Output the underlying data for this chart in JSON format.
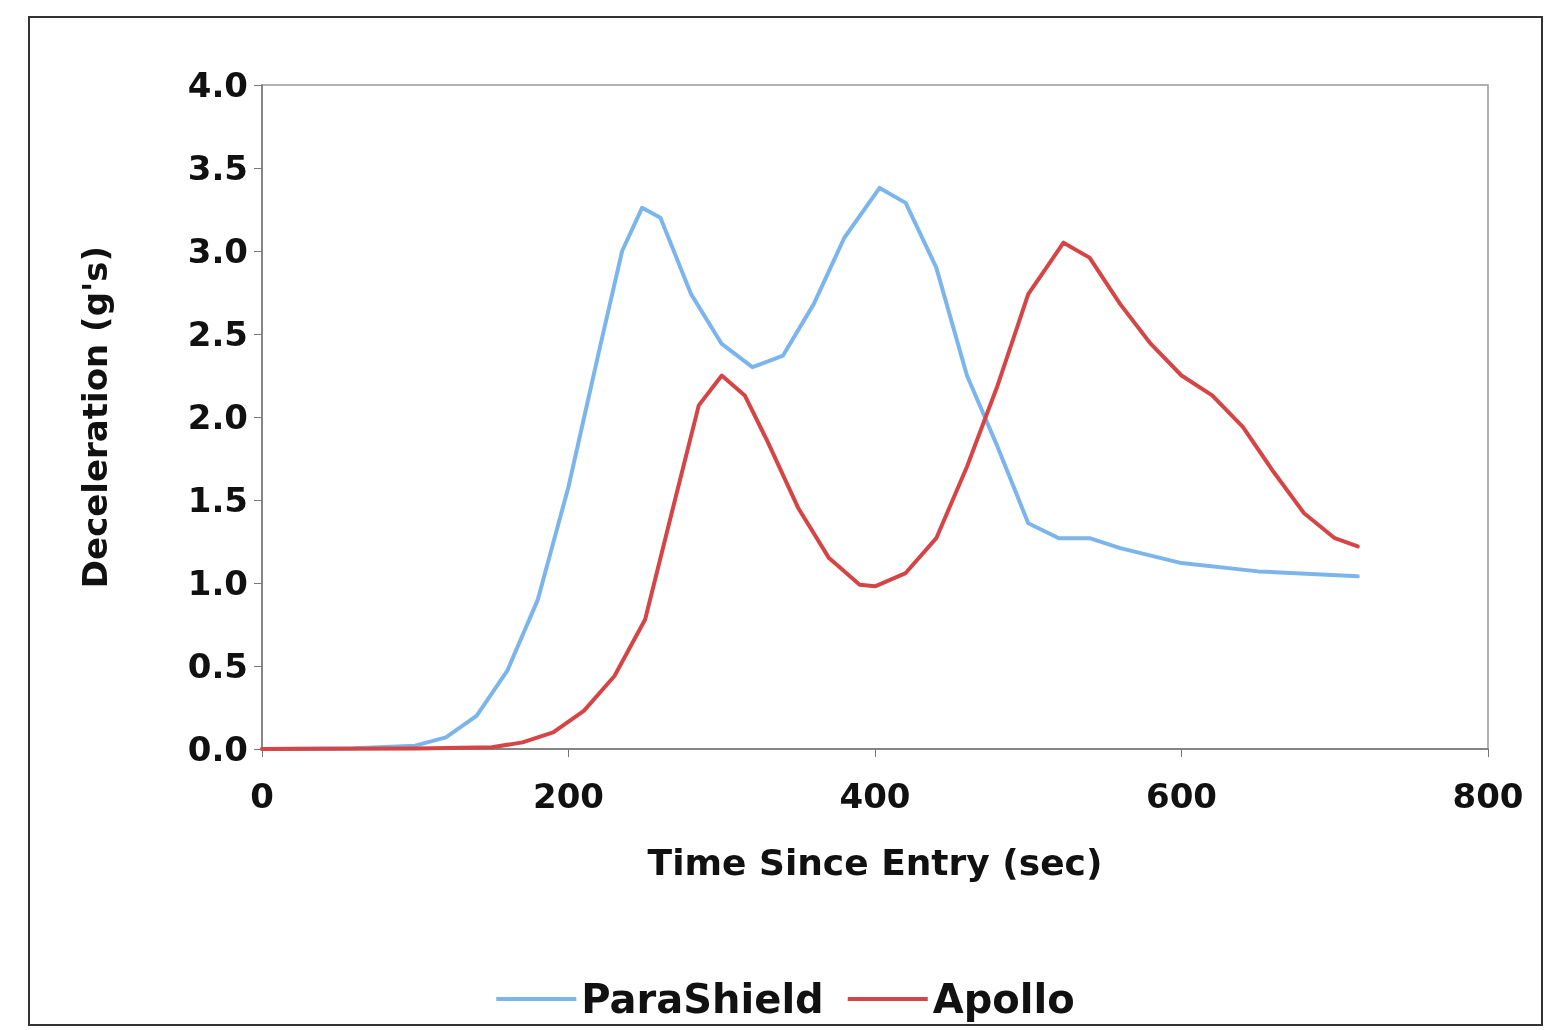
{
  "chart_data": {
    "type": "line",
    "xlabel": "Time Since Entry (sec)",
    "ylabel": "Deceleration (g's)",
    "xlim": [
      0,
      800
    ],
    "xticks": [
      0,
      200,
      400,
      600,
      800
    ],
    "ylim": [
      0,
      4
    ],
    "yticks": [
      {
        "value": 0,
        "label": "0.0"
      },
      {
        "value": 0.5,
        "label": "0.5"
      },
      {
        "value": 1,
        "label": "1.0"
      },
      {
        "value": 1.5,
        "label": "1.5"
      },
      {
        "value": 2,
        "label": "2.0"
      },
      {
        "value": 2.5,
        "label": "2.5"
      },
      {
        "value": 3,
        "label": "3.0"
      },
      {
        "value": 3.5,
        "label": "3.5"
      },
      {
        "value": 4,
        "label": "4.0"
      }
    ],
    "grid": false,
    "legend": "bottom",
    "marker": "none",
    "line_style": "solid",
    "series": [
      {
        "name": "ParaShield",
        "color": "#7cb5ec",
        "x": [
          0,
          60,
          100,
          120,
          140,
          160,
          180,
          200,
          220,
          235,
          248,
          260,
          280,
          300,
          320,
          340,
          360,
          380,
          403,
          420,
          440,
          460,
          480,
          500,
          520,
          540,
          560,
          600,
          650,
          715
        ],
        "values": [
          0,
          0.005,
          0.02,
          0.07,
          0.2,
          0.47,
          0.9,
          1.58,
          2.4,
          3.0,
          3.26,
          3.2,
          2.74,
          2.44,
          2.3,
          2.37,
          2.68,
          3.08,
          3.38,
          3.29,
          2.9,
          2.25,
          1.82,
          1.36,
          1.27,
          1.27,
          1.21,
          1.12,
          1.07,
          1.04
        ]
      },
      {
        "name": "Apollo",
        "color": "#d64545",
        "x": [
          0,
          100,
          150,
          170,
          190,
          210,
          230,
          250,
          270,
          285,
          300,
          315,
          330,
          350,
          370,
          390,
          400,
          420,
          440,
          460,
          480,
          500,
          523,
          540,
          560,
          580,
          600,
          620,
          640,
          660,
          680,
          700,
          715
        ],
        "values": [
          0,
          0.003,
          0.01,
          0.04,
          0.1,
          0.23,
          0.44,
          0.78,
          1.52,
          2.07,
          2.25,
          2.13,
          1.85,
          1.45,
          1.15,
          0.99,
          0.98,
          1.06,
          1.27,
          1.7,
          2.19,
          2.74,
          3.05,
          2.96,
          2.68,
          2.44,
          2.25,
          2.13,
          1.94,
          1.67,
          1.42,
          1.27,
          1.22
        ]
      }
    ]
  }
}
